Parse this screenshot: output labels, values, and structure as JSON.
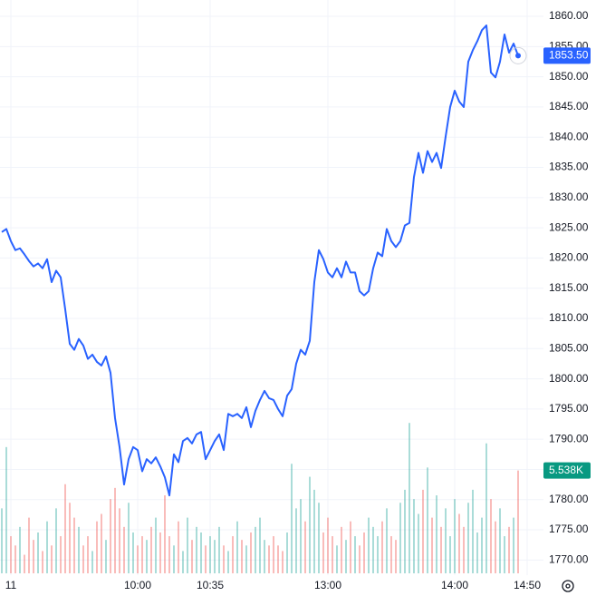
{
  "chart_data": {
    "type": "line",
    "categories": [
      null,
      null,
      "11",
      null,
      null,
      null,
      null,
      null,
      null,
      null,
      null,
      null,
      null,
      null,
      null,
      null,
      null,
      null,
      null,
      null,
      null,
      null,
      null,
      null,
      null,
      null,
      null,
      null,
      null,
      null,
      "10:00",
      null,
      null,
      null,
      null,
      null,
      null,
      null,
      null,
      null,
      null,
      null,
      null,
      null,
      null,
      null,
      "10:35",
      null,
      null,
      null,
      null,
      null,
      null,
      null,
      null,
      null,
      null,
      null,
      null,
      null,
      null,
      null,
      null,
      null,
      null,
      null,
      null,
      null,
      null,
      null,
      null,
      null,
      "13:00",
      null,
      null,
      null,
      null,
      null,
      null,
      null,
      null,
      null,
      null,
      null,
      null,
      null,
      null,
      null,
      null,
      null,
      null,
      null,
      null,
      null,
      null,
      null,
      null,
      null,
      null,
      null,
      "14:00",
      null,
      null,
      null,
      null,
      null,
      null,
      null,
      null,
      null,
      null,
      null,
      null,
      null,
      null,
      null,
      "14:50"
    ],
    "series": [
      {
        "color": "#2962ff",
        "values": [
          1824.3,
          1824.8,
          1822.8,
          1821.3,
          1821.6,
          1820.6,
          1819.5,
          1818.6,
          1819.1,
          1818.3,
          1819.8,
          1816.0,
          1817.9,
          1816.8,
          1811.5,
          1805.8,
          1804.8,
          1806.6,
          1805.5,
          1803.3,
          1804.0,
          1802.8,
          1802.2,
          1803.7,
          1801.0,
          1793.5,
          1788.7,
          1782.5,
          1786.7,
          1788.7,
          1788.2,
          1784.7,
          1786.7,
          1786.0,
          1787.0,
          1785.5,
          1783.7,
          1780.7,
          1787.5,
          1786.2,
          1789.7,
          1790.2,
          1789.3,
          1790.8,
          1791.2,
          1786.7,
          1788.2,
          1789.7,
          1790.8,
          1788.2,
          1794.2,
          1793.8,
          1794.2,
          1793.5,
          1795.3,
          1792.0,
          1794.7,
          1796.5,
          1798.0,
          1796.8,
          1796.5,
          1795.0,
          1793.8,
          1797.2,
          1798.3,
          1802.5,
          1804.8,
          1804.0,
          1806.3,
          1816.0,
          1821.3,
          1819.8,
          1817.6,
          1816.8,
          1818.3,
          1816.8,
          1819.4,
          1817.6,
          1817.6,
          1814.5,
          1813.8,
          1814.5,
          1818.3,
          1820.9,
          1820.3,
          1824.8,
          1822.8,
          1821.8,
          1822.8,
          1825.4,
          1825.8,
          1833.4,
          1837.4,
          1834.1,
          1837.7,
          1835.9,
          1837.4,
          1834.9,
          1840.1,
          1845.0,
          1847.7,
          1845.9,
          1845.0,
          1852.5,
          1854.4,
          1855.9,
          1857.7,
          1858.5,
          1850.7,
          1849.9,
          1852.5,
          1857.0,
          1854.0,
          1855.5,
          1853.5,
          null,
          null
        ]
      }
    ],
    "volume": [
      3.5,
      6.8,
      2.0,
      1.5,
      2.5,
      1.0,
      3.0,
      1.8,
      2.2,
      1.2,
      2.8,
      1.5,
      3.5,
      2.0,
      4.8,
      3.8,
      3.0,
      2.5,
      1.5,
      2.0,
      1.2,
      2.8,
      3.2,
      1.8,
      4.0,
      4.6,
      3.5,
      2.5,
      3.8,
      2.2,
      1.5,
      2.0,
      1.8,
      2.5,
      3.0,
      2.2,
      4.2,
      2.0,
      1.5,
      2.8,
      1.2,
      3.0,
      1.8,
      2.5,
      2.2,
      1.5,
      2.0,
      1.8,
      2.5,
      1.5,
      1.2,
      2.0,
      2.8,
      1.8,
      1.5,
      2.2,
      2.5,
      3.0,
      1.8,
      1.5,
      2.0,
      1.5,
      1.2,
      2.2,
      5.9,
      3.5,
      4.0,
      2.8,
      5.2,
      4.5,
      3.8,
      2.2,
      3.0,
      2.0,
      1.5,
      2.5,
      1.8,
      2.8,
      2.0,
      1.5,
      2.2,
      3.0,
      2.5,
      2.0,
      2.8,
      3.5,
      2.0,
      1.8,
      3.8,
      4.5,
      8.1,
      4.0,
      3.2,
      4.5,
      5.7,
      3.0,
      4.2,
      2.5,
      3.5,
      2.0,
      4.0,
      3.2,
      2.5,
      3.8,
      4.5,
      2.2,
      3.0,
      7.0,
      4.0,
      2.8,
      3.5,
      2.0,
      2.5,
      3.0,
      5.538,
      null,
      null
    ],
    "up_color": "#26a69a",
    "down_color": "#ef5350",
    "volume_label_color": "#089981",
    "vol_lim": [
      0,
      30
    ],
    "last_price": {
      "value": 1853.5,
      "label": "1853.50"
    },
    "last_volume": {
      "value": 5.538,
      "label": "5.538K"
    },
    "ylim": [
      1767.5,
      1862.5
    ],
    "yticks": [
      {
        "value": 1770,
        "label": "1770.00"
      },
      {
        "value": 1775,
        "label": "1775.00"
      },
      {
        "value": 1780,
        "label": "1780.00"
      },
      {
        "value": 1785,
        "label": "1785.00"
      },
      {
        "value": 1790,
        "label": "1790.00"
      },
      {
        "value": 1795,
        "label": "1795.00"
      },
      {
        "value": 1800,
        "label": "1800.00"
      },
      {
        "value": 1805,
        "label": "1805.00"
      },
      {
        "value": 1810,
        "label": "1810.00"
      },
      {
        "value": 1815,
        "label": "1815.00"
      },
      {
        "value": 1820,
        "label": "1820.00"
      },
      {
        "value": 1825,
        "label": "1825.00"
      },
      {
        "value": 1830,
        "label": "1830.00"
      },
      {
        "value": 1835,
        "label": "1835.00"
      },
      {
        "value": 1840,
        "label": "1840.00"
      },
      {
        "value": 1845,
        "label": "1845.00"
      },
      {
        "value": 1850,
        "label": "1850.00"
      },
      {
        "value": 1855,
        "label": "1855.00"
      },
      {
        "value": 1860,
        "label": "1860.00"
      }
    ],
    "grid": true
  }
}
